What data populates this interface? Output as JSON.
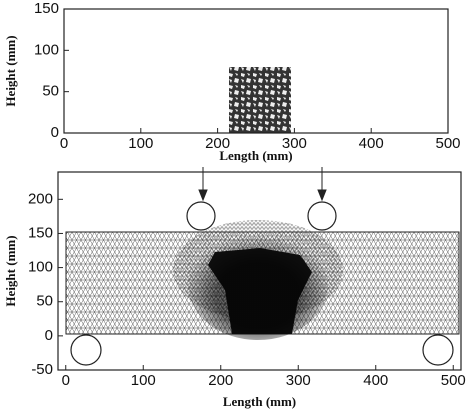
{
  "chart_data": [
    {
      "type": "diagram",
      "xlabel": "Length (mm)",
      "ylabel": "Height (mm)",
      "xlim": [
        0,
        500
      ],
      "ylim": [
        0,
        150
      ],
      "xticks": [
        0,
        100,
        200,
        300,
        400,
        500
      ],
      "yticks": [
        0,
        50,
        100,
        150
      ]
    },
    {
      "type": "diagram",
      "xlabel": "Length (mm)",
      "ylabel": "Height (mm)",
      "xlim": [
        -10,
        510
      ],
      "ylim": [
        -50,
        240
      ],
      "xticks": [
        0,
        100,
        200,
        300,
        400,
        500
      ],
      "yticks": [
        -50,
        0,
        50,
        100,
        150,
        200
      ]
    }
  ]
}
